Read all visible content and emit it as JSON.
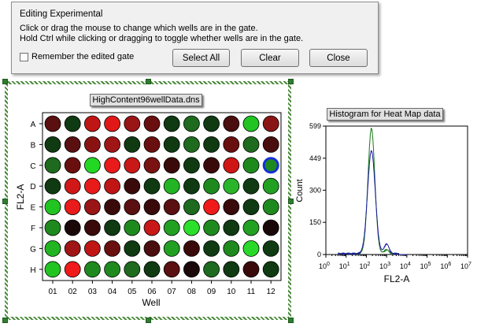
{
  "dialog": {
    "title": "Editing Experimental",
    "line1": "Click or drag the mouse to change which wells are in the gate.",
    "line2": "Hold Ctrl while clicking or dragging to toggle whether wells are in the gate.",
    "checkbox_label": "Remember the edited gate",
    "checkbox_checked": false,
    "select_all_label": "Select All",
    "clear_label": "Clear",
    "close_label": "Close"
  },
  "heatmap": {
    "title": "HighContent96wellData.dns",
    "xlabel": "Well",
    "ylabel": "FL2-A",
    "rows": [
      "A",
      "B",
      "C",
      "D",
      "E",
      "F",
      "G",
      "H"
    ],
    "columns": [
      "01",
      "02",
      "03",
      "04",
      "05",
      "06",
      "07",
      "08",
      "09",
      "10",
      "11",
      "12"
    ],
    "selected_well": "C12",
    "wells": [
      [
        "#5a0f10",
        "#0f3a12",
        "#c01515",
        "#e01818",
        "#9a1515",
        "#6a0f0f",
        "#0f3a12",
        "#1e6a1e",
        "#0f3a12",
        "#4a0e0e",
        "#22c422",
        "#8a1515"
      ],
      [
        "#0f3a12",
        "#5a0f10",
        "#8a1212",
        "#a01515",
        "#0f3a12",
        "#6a0f0f",
        "#0f3a12",
        "#1e6a1e",
        "#0f3a12",
        "#6a0f0f",
        "#1e6a1e",
        "#4a0e0e"
      ],
      [
        "#1e6a1e",
        "#6a0f0f",
        "#22d822",
        "#e81a1a",
        "#c81818",
        "#7a1212",
        "#3a0a0a",
        "#0f3a12",
        "#3a0a0a",
        "#d01515",
        "#1e8a1e",
        "#1e8a1e"
      ],
      [
        "#0f3a12",
        "#d01818",
        "#e81a1a",
        "#c01515",
        "#3a0a0a",
        "#0f3a12",
        "#22b422",
        "#0f3a12",
        "#1e8a1e",
        "#2ab42a",
        "#0f3a12",
        "#22a022"
      ],
      [
        "#22c422",
        "#e81a1a",
        "#9a1515",
        "#3a0a0a",
        "#5a0f10",
        "#3a0a0a",
        "#5a0f10",
        "#1e6a1e",
        "#f01a1a",
        "#3a0a0a",
        "#0f3a12",
        "#1e8a1e"
      ],
      [
        "#1e8a1e",
        "#1a0808",
        "#3a0a0a",
        "#0f3a12",
        "#1e8a1e",
        "#c81818",
        "#22a022",
        "#2ae02a",
        "#1e8a1e",
        "#0f3a12",
        "#22a022",
        "#1a0808"
      ],
      [
        "#22b422",
        "#a01515",
        "#c01515",
        "#6a0f0f",
        "#0f3a12",
        "#4a0e0e",
        "#22a022",
        "#3a0a0a",
        "#0f3a12",
        "#1e8a1e",
        "#2ad82a",
        "#0f3a12"
      ],
      [
        "#22c422",
        "#f01a1a",
        "#1e8a1e",
        "#1e8a1e",
        "#1e6a1e",
        "#0f3a12",
        "#5a0f10",
        "#1a0808",
        "#1e6a1e",
        "#0f3a12",
        "#3a0a0a",
        "#0f3a12"
      ]
    ]
  },
  "histogram": {
    "title": "Histogram for Heat Map data",
    "xlabel": "FL2-A",
    "ylabel": "Count",
    "y_ticks": [
      "0",
      "150",
      "300",
      "449",
      "599"
    ],
    "x_ticks": [
      {
        "base": "10",
        "exp": "0"
      },
      {
        "base": "10",
        "exp": "1"
      },
      {
        "base": "10",
        "exp": "2"
      },
      {
        "base": "10",
        "exp": "3"
      },
      {
        "base": "10",
        "exp": "4"
      },
      {
        "base": "10",
        "exp": "5"
      },
      {
        "base": "10",
        "exp": "6"
      },
      {
        "base": "10",
        "exp": "7"
      }
    ],
    "series_colors": {
      "gated": "#1a1aa0",
      "total": "#1a7a1a"
    }
  }
}
